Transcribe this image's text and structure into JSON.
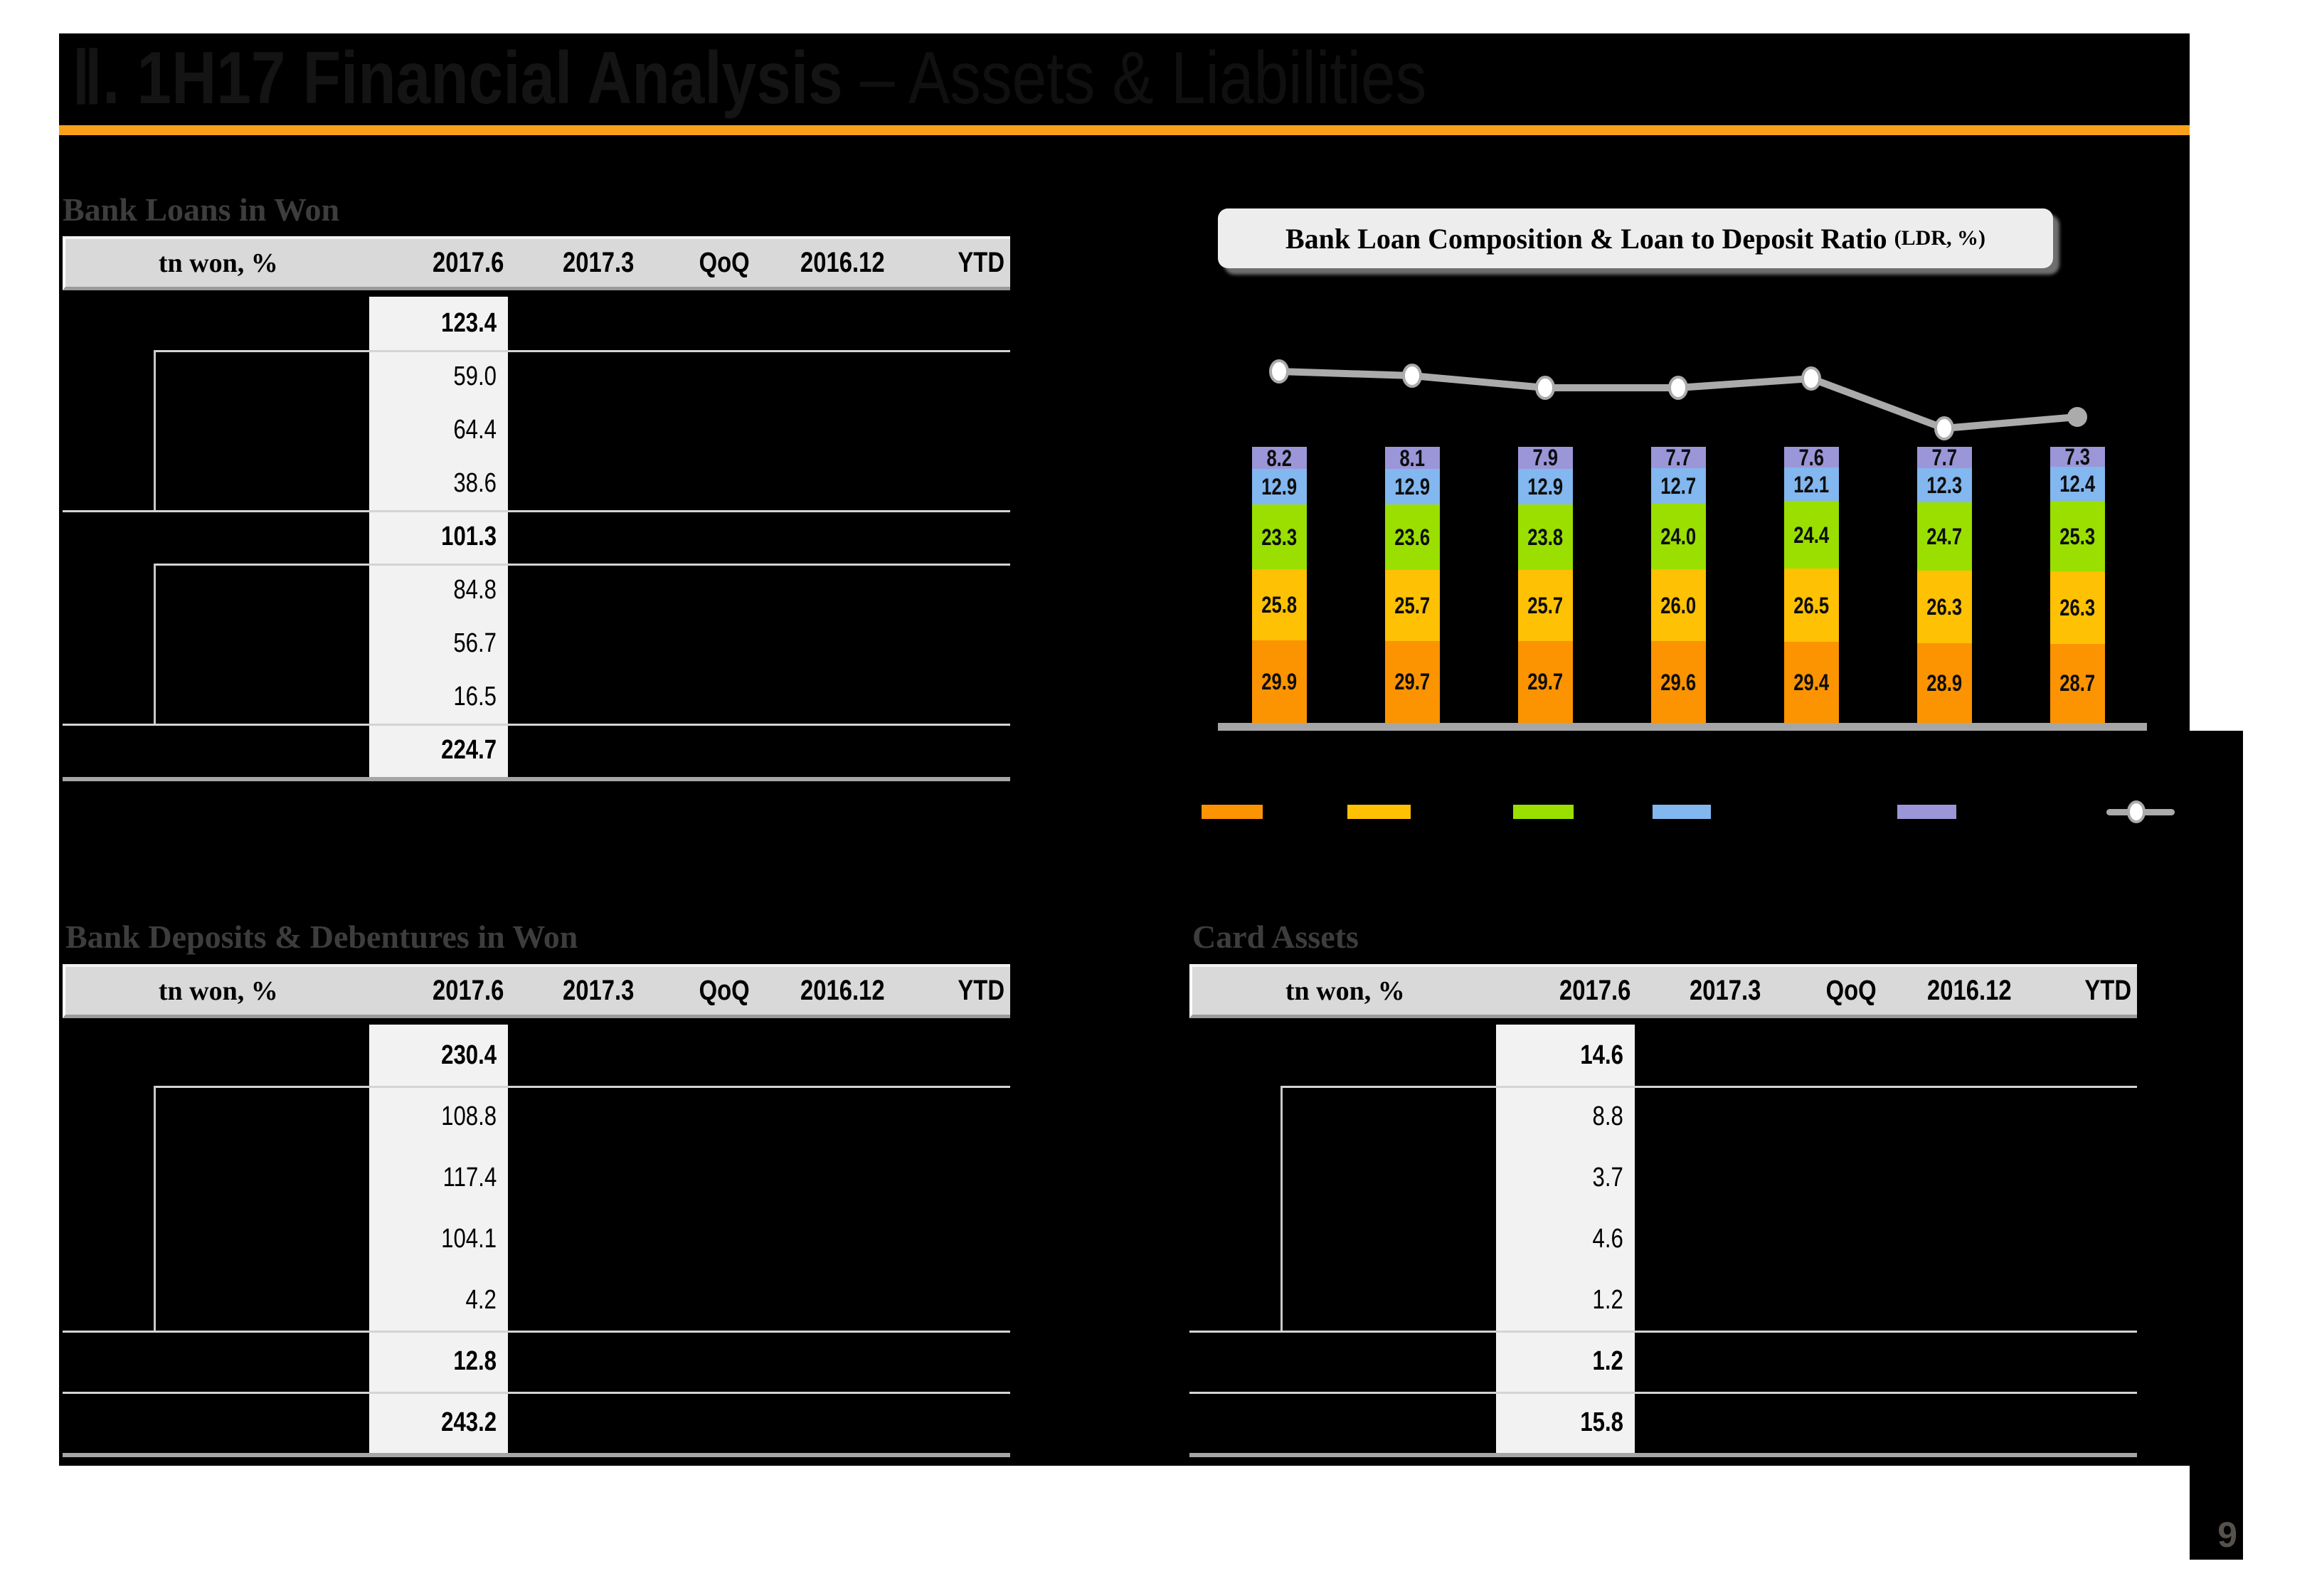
{
  "title": {
    "main": "Ⅱ. 1H17 Financial Analysis",
    "sub": " – Assets & Liabilities"
  },
  "page": {
    "number": "9"
  },
  "columns": [
    "tn won, %",
    "2017.6",
    "2017.3",
    "QoQ",
    "2016.12",
    "YTD"
  ],
  "tables": {
    "bank_loans": {
      "heading": "Bank Loans in Won",
      "rows": [
        {
          "value": "123.4",
          "bold": true,
          "sub": false,
          "sep": "none"
        },
        {
          "value": "59.0",
          "bold": false,
          "sub": true,
          "sep": "partial"
        },
        {
          "value": "64.4",
          "bold": false,
          "sub": true,
          "sep": "none"
        },
        {
          "value": "38.6",
          "bold": false,
          "sub": true,
          "sep": "none"
        },
        {
          "value": "101.3",
          "bold": true,
          "sub": false,
          "sep": "full"
        },
        {
          "value": "84.8",
          "bold": false,
          "sub": true,
          "sep": "partial"
        },
        {
          "value": "56.7",
          "bold": false,
          "sub": true,
          "sep": "none"
        },
        {
          "value": "16.5",
          "bold": false,
          "sub": true,
          "sep": "none"
        },
        {
          "value": "224.7",
          "bold": true,
          "sub": false,
          "sep": "full"
        }
      ]
    },
    "deposits": {
      "heading": "Bank Deposits & Debentures in Won",
      "rows": [
        {
          "value": "230.4",
          "bold": true,
          "sub": false,
          "sep": "none"
        },
        {
          "value": "108.8",
          "bold": false,
          "sub": true,
          "sep": "partial"
        },
        {
          "value": "117.4",
          "bold": false,
          "sub": true,
          "sep": "none"
        },
        {
          "value": "104.1",
          "bold": false,
          "sub": true,
          "sep": "none"
        },
        {
          "value": "4.2",
          "bold": false,
          "sub": true,
          "sep": "none"
        },
        {
          "value": "12.8",
          "bold": true,
          "sub": false,
          "sep": "full"
        },
        {
          "value": "243.2",
          "bold": true,
          "sub": false,
          "sep": "full"
        }
      ]
    },
    "card": {
      "heading": "Card Assets",
      "rows": [
        {
          "value": "14.6",
          "bold": true,
          "sub": false,
          "sep": "none"
        },
        {
          "value": "8.8",
          "bold": false,
          "sub": true,
          "sep": "partial"
        },
        {
          "value": "3.7",
          "bold": false,
          "sub": true,
          "sep": "none"
        },
        {
          "value": "4.6",
          "bold": false,
          "sub": true,
          "sep": "none"
        },
        {
          "value": "1.2",
          "bold": false,
          "sub": true,
          "sep": "none"
        },
        {
          "value": "1.2",
          "bold": true,
          "sub": false,
          "sep": "full"
        },
        {
          "value": "15.8",
          "bold": true,
          "sub": false,
          "sep": "full"
        }
      ]
    }
  },
  "chart_data": {
    "type": "bar",
    "stacked": true,
    "percent_stack": true,
    "title": "Bank Loan Composition & Loan to Deposit Ratio",
    "title_suffix": "(LDR, %)",
    "categories": [
      "",
      "",
      "",
      "",
      "",
      "",
      ""
    ],
    "categories_visible": false,
    "series": [
      {
        "name": "segment-orange",
        "color": "#fb9400",
        "values": [
          "29.9",
          "29.7",
          "29.7",
          "29.6",
          "29.4",
          "28.9",
          "28.7"
        ]
      },
      {
        "name": "segment-amber",
        "color": "#ffc103",
        "values": [
          "25.8",
          "25.7",
          "25.7",
          "26.0",
          "26.5",
          "26.3",
          "26.3"
        ]
      },
      {
        "name": "segment-green",
        "color": "#9adf00",
        "values": [
          "23.3",
          "23.6",
          "23.8",
          "24.0",
          "24.4",
          "24.7",
          "25.3"
        ]
      },
      {
        "name": "segment-blue",
        "color": "#82b7ef",
        "values": [
          "12.9",
          "12.9",
          "12.9",
          "12.7",
          "12.1",
          "12.3",
          "12.4"
        ]
      },
      {
        "name": "segment-purple",
        "color": "#9b96d8",
        "values": [
          "8.2",
          "8.1",
          "7.9",
          "7.7",
          "7.6",
          "7.7",
          "7.3"
        ]
      }
    ],
    "line_series": {
      "name": "LDR",
      "color": "#ababab",
      "values_visible": false,
      "marker_y_px": [
        522,
        528,
        545,
        545,
        532,
        602,
        586
      ]
    },
    "value_labels": "inside",
    "legend_position": "bottom",
    "legend": {
      "labels_visible": false,
      "entries": [
        {
          "name": "segment-orange",
          "color": "#fb9400",
          "label": ""
        },
        {
          "name": "segment-amber",
          "color": "#ffc103",
          "label": ""
        },
        {
          "name": "segment-green",
          "color": "#9adf00",
          "label": ""
        },
        {
          "name": "segment-blue",
          "color": "#82b7ef",
          "label": ""
        },
        {
          "name": "segment-purple",
          "color": "#9b96d8",
          "label": ""
        },
        {
          "name": "ldr-line",
          "color": "#ababab",
          "label": ""
        }
      ]
    }
  },
  "colors": {
    "slide_background": "#000000",
    "page_margin": "#ffffff",
    "accent_rule": "#f9a11b",
    "table_header_bg": "#d9d9d9",
    "highlight_column_bg": "#f2f2f2",
    "grid_line": "#d4d4d4",
    "table_bottom_border": "#a6a6a6",
    "axis_line": "#a6a6a6",
    "heading_text": "#3d3d3d",
    "page_number_text": "#57514b"
  }
}
